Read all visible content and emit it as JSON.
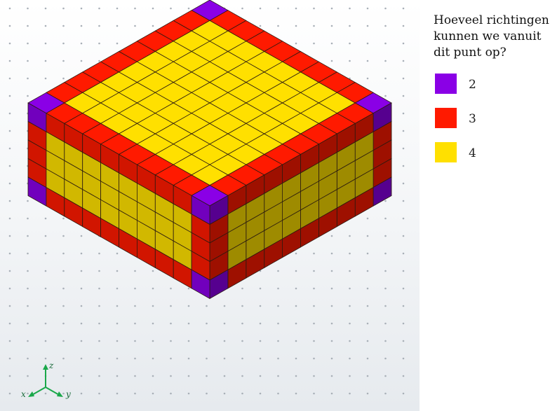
{
  "question": "Hoeveel richtingen kunnen we vanuit dit punt op?",
  "legend": [
    {
      "label": "2",
      "color": "#8a00e6"
    },
    {
      "label": "3",
      "color": "#ff1a00"
    },
    {
      "label": "4",
      "color": "#ffe000"
    }
  ],
  "cube": {
    "nx": 10,
    "ny": 10,
    "nz": 5
  },
  "axes": {
    "x": "x",
    "y": "y",
    "z": "z"
  }
}
